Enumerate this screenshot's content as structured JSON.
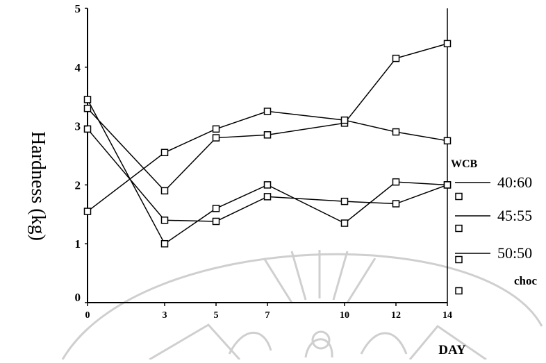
{
  "chart_data": {
    "type": "line",
    "ylabel": "Hardness (kg)",
    "xlabel": "DAY",
    "x": [
      0,
      3,
      5,
      7,
      10,
      12,
      14
    ],
    "x_tick_labels": [
      "0",
      "3",
      "5",
      "7",
      "10",
      "12",
      "14"
    ],
    "y_tick_labels": [
      "0",
      "1",
      "2",
      "3",
      "4",
      "5"
    ],
    "ylim": [
      0,
      5
    ],
    "grid": false,
    "legend": {
      "title": "WCB",
      "entries": [
        "40:60",
        "45:55",
        "50:50",
        "choc"
      ],
      "placement": "right"
    },
    "series": [
      {
        "name": "40:60",
        "values": [
          3.3,
          1.9,
          2.8,
          2.85,
          3.05,
          4.15,
          4.4
        ]
      },
      {
        "name": "45:55",
        "values": [
          1.55,
          2.55,
          2.95,
          3.25,
          3.1,
          2.9,
          2.75
        ]
      },
      {
        "name": "50:50",
        "values": [
          3.45,
          1.0,
          1.6,
          2.0,
          1.35,
          2.05,
          2.0
        ]
      },
      {
        "name": "choc",
        "values": [
          2.95,
          1.4,
          1.38,
          1.8,
          1.72,
          1.68,
          2.0
        ]
      }
    ],
    "marker": "open-square",
    "line_color": "#000000"
  }
}
